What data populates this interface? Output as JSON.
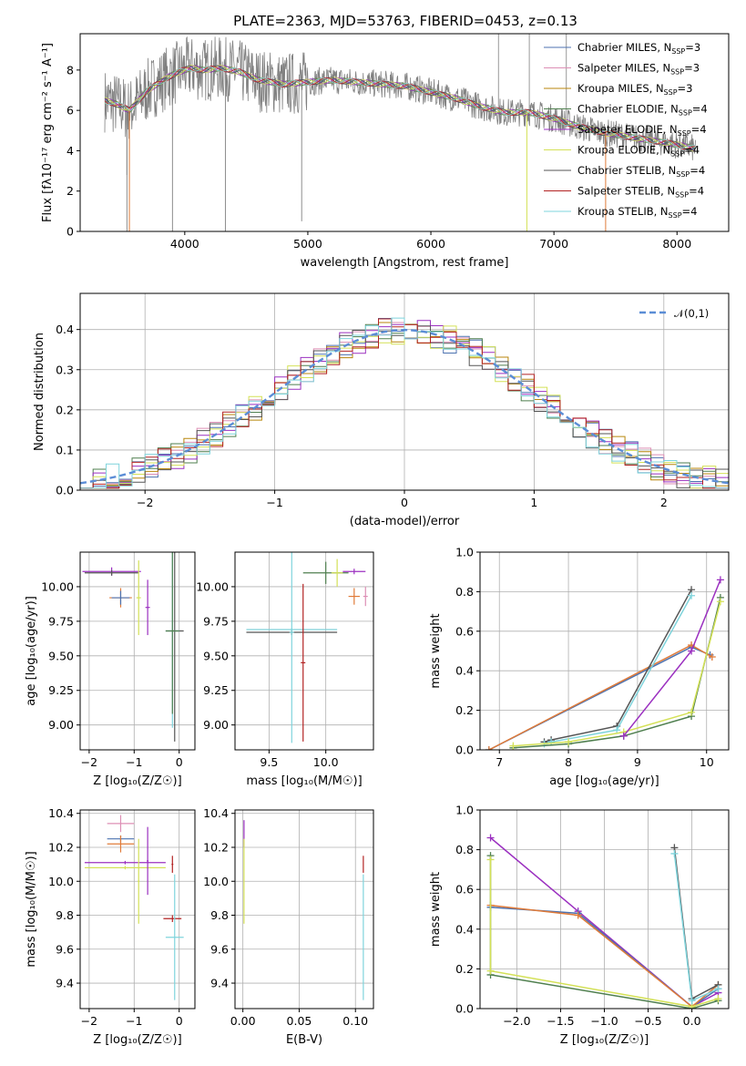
{
  "figure_title": "PLATE=2363, MJD=53763, FIBERID=0453, z=0.13",
  "chart_data": [
    {
      "id": "spectrum",
      "type": "line",
      "xlabel": "wavelength [Angstrom, rest frame]",
      "ylabel": "Flux [fλ10⁻¹⁷ erg cm⁻² s⁻¹ A⁻¹]",
      "xlim": [
        3150,
        8420
      ],
      "ylim": [
        0,
        9.8
      ],
      "xticks": [
        4000,
        5000,
        6000,
        7000,
        8000
      ],
      "yticks": [
        0,
        2,
        4,
        6,
        8
      ],
      "grid": false,
      "legend_position": "top-right",
      "data_x": [
        3350,
        3450,
        3550,
        3700,
        3850,
        3950,
        4050,
        4150,
        4300,
        4450,
        4600,
        4800,
        5000,
        5200,
        5400,
        5600,
        5800,
        6000,
        6200,
        6400,
        6600,
        6800,
        7000,
        7200,
        7400,
        7600,
        7800,
        8000,
        8150
      ],
      "data_y": [
        6.5,
        6.3,
        6.0,
        7.0,
        7.6,
        7.9,
        8.1,
        8.0,
        8.1,
        7.9,
        7.5,
        7.3,
        7.4,
        7.5,
        7.4,
        7.3,
        7.2,
        6.9,
        6.6,
        6.2,
        5.9,
        5.9,
        5.6,
        5.2,
        4.9,
        4.7,
        4.5,
        4.3,
        4.1
      ],
      "series": [
        {
          "name": "Chabrier MILES, N",
          "sub": "SSP",
          "suffix": "=3",
          "color": "#4c72b0"
        },
        {
          "name": "Salpeter MILES, N",
          "sub": "SSP",
          "suffix": "=3",
          "color": "#dd8fb5"
        },
        {
          "name": "Kroupa MILES, N",
          "sub": "SSP",
          "suffix": "=3",
          "color": "#b8860b"
        },
        {
          "name": "Chabrier ELODIE, N",
          "sub": "SSP",
          "suffix": "=4",
          "color": "#4f7f4f"
        },
        {
          "name": "Salpeter ELODIE, N",
          "sub": "SSP",
          "suffix": "=4",
          "color": "#9b30c0"
        },
        {
          "name": "Kroupa ELODIE, N",
          "sub": "SSP",
          "suffix": "=4",
          "color": "#d4e157"
        },
        {
          "name": "Chabrier STELIB, N",
          "sub": "SSP",
          "suffix": "=4",
          "color": "#555555"
        },
        {
          "name": "Salpeter STELIB, N",
          "sub": "SSP",
          "suffix": "=4",
          "color": "#b22222"
        },
        {
          "name": "Kroupa STELIB, N",
          "sub": "SSP",
          "suffix": "=4",
          "color": "#7fd4dc"
        }
      ],
      "data_color": "#808080",
      "model_color": "#e07b39"
    },
    {
      "id": "residuals",
      "type": "area",
      "xlabel": "(data-model)/error",
      "ylabel": "Normed distribution",
      "xlim": [
        -2.5,
        2.5
      ],
      "ylim": [
        0,
        0.49
      ],
      "xticks": [
        -2,
        -1,
        0,
        1,
        2
      ],
      "yticks": [
        0.0,
        0.1,
        0.2,
        0.3,
        0.4
      ],
      "grid": true,
      "legend_position": "top-right",
      "legend_label": "𝒩(0,1)",
      "bin_width": 0.1,
      "bin_start": -2.5,
      "hist_colors": [
        "#4c72b0",
        "#dd8fb5",
        "#b8860b",
        "#4f7f4f",
        "#9b30c0",
        "#d4e157",
        "#555555",
        "#b22222",
        "#7fd4dc"
      ],
      "normal_color": "#5b8dd6"
    },
    {
      "id": "age-vs-Z",
      "type": "scatter",
      "xlabel": "Z [log₁₀(Z/Z☉)]",
      "ylabel": "age  [log₁₀(age/yr)]",
      "xlim": [
        -2.2,
        0.35
      ],
      "ylim": [
        8.82,
        10.25
      ],
      "xticks": [
        -2,
        -1,
        0
      ],
      "yticks": [
        9.0,
        9.25,
        9.5,
        9.75,
        10.0
      ],
      "grid": true,
      "points": [
        {
          "x": -1.5,
          "y": 10.11,
          "xerr": 0.65,
          "yerr": 0.03,
          "color": "#9b30c0"
        },
        {
          "x": -1.5,
          "y": 10.1,
          "xerr": 0.6,
          "yerr": 0.02,
          "color": "#555555"
        },
        {
          "x": -1.3,
          "y": 9.92,
          "xerr": 0.25,
          "yerr": 0.07,
          "color": "#e07b39"
        },
        {
          "x": -1.3,
          "y": 9.92,
          "xerr": 0.2,
          "yerr": 0.05,
          "color": "#4c72b0"
        },
        {
          "x": -0.9,
          "y": 9.92,
          "xerr": 0.05,
          "yerr": 0.27,
          "color": "#d4e157"
        },
        {
          "x": -0.7,
          "y": 9.85,
          "xerr": 0.05,
          "yerr": 0.2,
          "color": "#9b30c0"
        },
        {
          "x": -0.1,
          "y": 9.68,
          "xerr": 0.2,
          "yerr": 0.8,
          "color": "#555555"
        },
        {
          "x": -0.15,
          "y": 9.68,
          "xerr": 0.15,
          "yerr": 0.7,
          "color": "#7fd4dc"
        },
        {
          "x": -0.15,
          "y": 9.68,
          "xerr": 0.15,
          "yerr": 0.6,
          "color": "#4f7f4f"
        }
      ]
    },
    {
      "id": "age-vs-mass",
      "type": "scatter",
      "xlabel": "mass [log₁₀(M/M☉)]",
      "ylabel": "",
      "xlim": [
        9.2,
        10.42
      ],
      "ylim": [
        8.82,
        10.25
      ],
      "xticks": [
        9.5,
        10.0
      ],
      "yticks": [
        9.0,
        9.25,
        9.5,
        9.75,
        10.0
      ],
      "grid": true,
      "points": [
        {
          "x": 9.7,
          "y": 9.67,
          "xerr": 0.4,
          "yerr": 0.02,
          "color": "#555555"
        },
        {
          "x": 9.7,
          "y": 9.69,
          "xerr": 0.4,
          "yerr": 0.01,
          "color": "#7fd4dc"
        },
        {
          "x": 9.7,
          "y": 9.67,
          "xerr": 0.02,
          "yerr": 0.8,
          "color": "#7fd4dc"
        },
        {
          "x": 9.8,
          "y": 9.45,
          "xerr": 0.02,
          "yerr": 0.57,
          "color": "#b22222"
        },
        {
          "x": 10.0,
          "y": 10.1,
          "xerr": 0.2,
          "yerr": 0.08,
          "color": "#4f7f4f"
        },
        {
          "x": 10.1,
          "y": 10.1,
          "xerr": 0.05,
          "yerr": 0.1,
          "color": "#d4e157"
        },
        {
          "x": 10.25,
          "y": 10.11,
          "xerr": 0.1,
          "yerr": 0.02,
          "color": "#9b30c0"
        },
        {
          "x": 10.25,
          "y": 9.93,
          "xerr": 0.05,
          "yerr": 0.06,
          "color": "#e07b39"
        },
        {
          "x": 10.35,
          "y": 9.93,
          "xerr": 0.02,
          "yerr": 0.07,
          "color": "#dd8fb5"
        }
      ]
    },
    {
      "id": "massweight-vs-age",
      "type": "line",
      "xlabel": "age  [log₁₀(age/yr)]",
      "ylabel": "mass weight",
      "xlim": [
        6.72,
        10.32
      ],
      "ylim": [
        0,
        1.0
      ],
      "xticks": [
        7,
        8,
        9,
        10
      ],
      "yticks": [
        0.0,
        0.2,
        0.4,
        0.6,
        0.8,
        1.0
      ],
      "grid": true,
      "series": [
        {
          "color": "#4c72b0",
          "x": [
            6.85,
            9.78,
            10.05
          ],
          "y": [
            0.0,
            0.52,
            0.48
          ]
        },
        {
          "color": "#e07b39",
          "x": [
            6.85,
            9.78,
            10.08
          ],
          "y": [
            0.0,
            0.53,
            0.47
          ]
        },
        {
          "color": "#555555",
          "x": [
            7.65,
            7.75,
            8.7,
            9.78
          ],
          "y": [
            0.04,
            0.05,
            0.12,
            0.81
          ]
        },
        {
          "color": "#7fd4dc",
          "x": [
            7.65,
            7.75,
            8.7,
            9.78
          ],
          "y": [
            0.03,
            0.04,
            0.1,
            0.78
          ]
        },
        {
          "color": "#4f7f4f",
          "x": [
            7.2,
            8.0,
            8.8,
            9.78,
            10.2
          ],
          "y": [
            0.01,
            0.03,
            0.07,
            0.17,
            0.77
          ]
        },
        {
          "color": "#d4e157",
          "x": [
            7.2,
            8.0,
            8.8,
            9.78,
            10.2
          ],
          "y": [
            0.02,
            0.04,
            0.09,
            0.19,
            0.75
          ]
        },
        {
          "color": "#9b30c0",
          "x": [
            8.8,
            9.78,
            10.2
          ],
          "y": [
            0.07,
            0.5,
            0.86
          ]
        }
      ]
    },
    {
      "id": "mass-vs-Z",
      "type": "scatter",
      "xlabel": "Z [log₁₀(Z/Z☉)]",
      "ylabel": "mass [log₁₀(M/M☉)]",
      "xlim": [
        -2.2,
        0.35
      ],
      "ylim": [
        9.25,
        10.42
      ],
      "xticks": [
        -2,
        -1,
        0
      ],
      "yticks": [
        9.4,
        9.6,
        9.8,
        10.0,
        10.2,
        10.4
      ],
      "grid": true,
      "points": [
        {
          "x": -1.3,
          "y": 10.25,
          "xerr": 0.3,
          "yerr": 0.02,
          "color": "#4c72b0"
        },
        {
          "x": -1.3,
          "y": 10.22,
          "xerr": 0.3,
          "yerr": 0.05,
          "color": "#e07b39"
        },
        {
          "x": -1.3,
          "y": 10.34,
          "xerr": 0.3,
          "yerr": 0.05,
          "color": "#dd8fb5"
        },
        {
          "x": -1.2,
          "y": 10.11,
          "xerr": 0.9,
          "yerr": 0.01,
          "color": "#9b30c0"
        },
        {
          "x": -1.2,
          "y": 10.08,
          "xerr": 0.9,
          "yerr": 0.01,
          "color": "#d4e157"
        },
        {
          "x": -0.9,
          "y": 10.0,
          "xerr": 0.02,
          "yerr": 0.25,
          "color": "#d4e157"
        },
        {
          "x": -0.7,
          "y": 10.12,
          "xerr": 0.02,
          "yerr": 0.2,
          "color": "#9b30c0"
        },
        {
          "x": -0.15,
          "y": 9.78,
          "xerr": 0.2,
          "yerr": 0.02,
          "color": "#b22222"
        },
        {
          "x": -0.1,
          "y": 9.67,
          "xerr": 0.2,
          "yerr": 0.37,
          "color": "#7fd4dc"
        },
        {
          "x": -0.15,
          "y": 10.1,
          "xerr": 0.02,
          "yerr": 0.05,
          "color": "#b22222"
        }
      ]
    },
    {
      "id": "mass-vs-EBV",
      "type": "scatter",
      "xlabel": "E(B-V)",
      "ylabel": "",
      "xlim": [
        -0.007,
        0.116
      ],
      "ylim": [
        9.25,
        10.42
      ],
      "xticks": [
        0.0,
        0.05,
        0.1
      ],
      "yticks": [
        9.4,
        9.6,
        9.8,
        10.0,
        10.2,
        10.4
      ],
      "grid": true,
      "points": [
        {
          "x": 0.001,
          "y": 10.28,
          "xerr": 0.0,
          "yerr": 0.08,
          "color": "#9b30c0"
        },
        {
          "x": 0.001,
          "y": 10.0,
          "xerr": 0.0,
          "yerr": 0.25,
          "color": "#d4e157"
        },
        {
          "x": 0.107,
          "y": 10.1,
          "xerr": 0.0,
          "yerr": 0.05,
          "color": "#b22222"
        },
        {
          "x": 0.107,
          "y": 9.67,
          "xerr": 0.0,
          "yerr": 0.37,
          "color": "#7fd4dc"
        }
      ]
    },
    {
      "id": "massweight-vs-Z",
      "type": "line",
      "xlabel": "Z [log₁₀(Z/Z☉)]",
      "ylabel": "mass weight",
      "xlim": [
        -2.42,
        0.42
      ],
      "ylim": [
        0,
        1.0
      ],
      "xticks": [
        -2.0,
        -1.5,
        -1.0,
        -0.5,
        0.0
      ],
      "yticks": [
        0.0,
        0.2,
        0.4,
        0.6,
        0.8,
        1.0
      ],
      "grid": true,
      "series": [
        {
          "color": "#9b30c0",
          "x": [
            -2.3,
            -1.3,
            0.0,
            0.3
          ],
          "y": [
            0.86,
            0.49,
            0.01,
            0.08
          ]
        },
        {
          "color": "#4c72b0",
          "x": [
            -2.3,
            -1.3,
            0.0,
            0.3
          ],
          "y": [
            0.51,
            0.48,
            0.01,
            0.1
          ]
        },
        {
          "color": "#e07b39",
          "x": [
            -2.3,
            -1.3,
            0.0,
            0.3
          ],
          "y": [
            0.52,
            0.47,
            0.01,
            0.12
          ]
        },
        {
          "color": "#4f7f4f",
          "x": [
            -2.3,
            -2.3,
            0.0,
            0.3
          ],
          "y": [
            0.77,
            0.17,
            0.0,
            0.04
          ]
        },
        {
          "color": "#d4e157",
          "x": [
            -2.3,
            -2.3,
            0.0,
            0.3
          ],
          "y": [
            0.75,
            0.19,
            0.01,
            0.05
          ]
        },
        {
          "color": "#555555",
          "x": [
            -0.2,
            0.0,
            0.3
          ],
          "y": [
            0.81,
            0.05,
            0.12
          ]
        },
        {
          "color": "#7fd4dc",
          "x": [
            -0.2,
            0.0,
            0.3
          ],
          "y": [
            0.78,
            0.04,
            0.1
          ]
        }
      ]
    }
  ]
}
